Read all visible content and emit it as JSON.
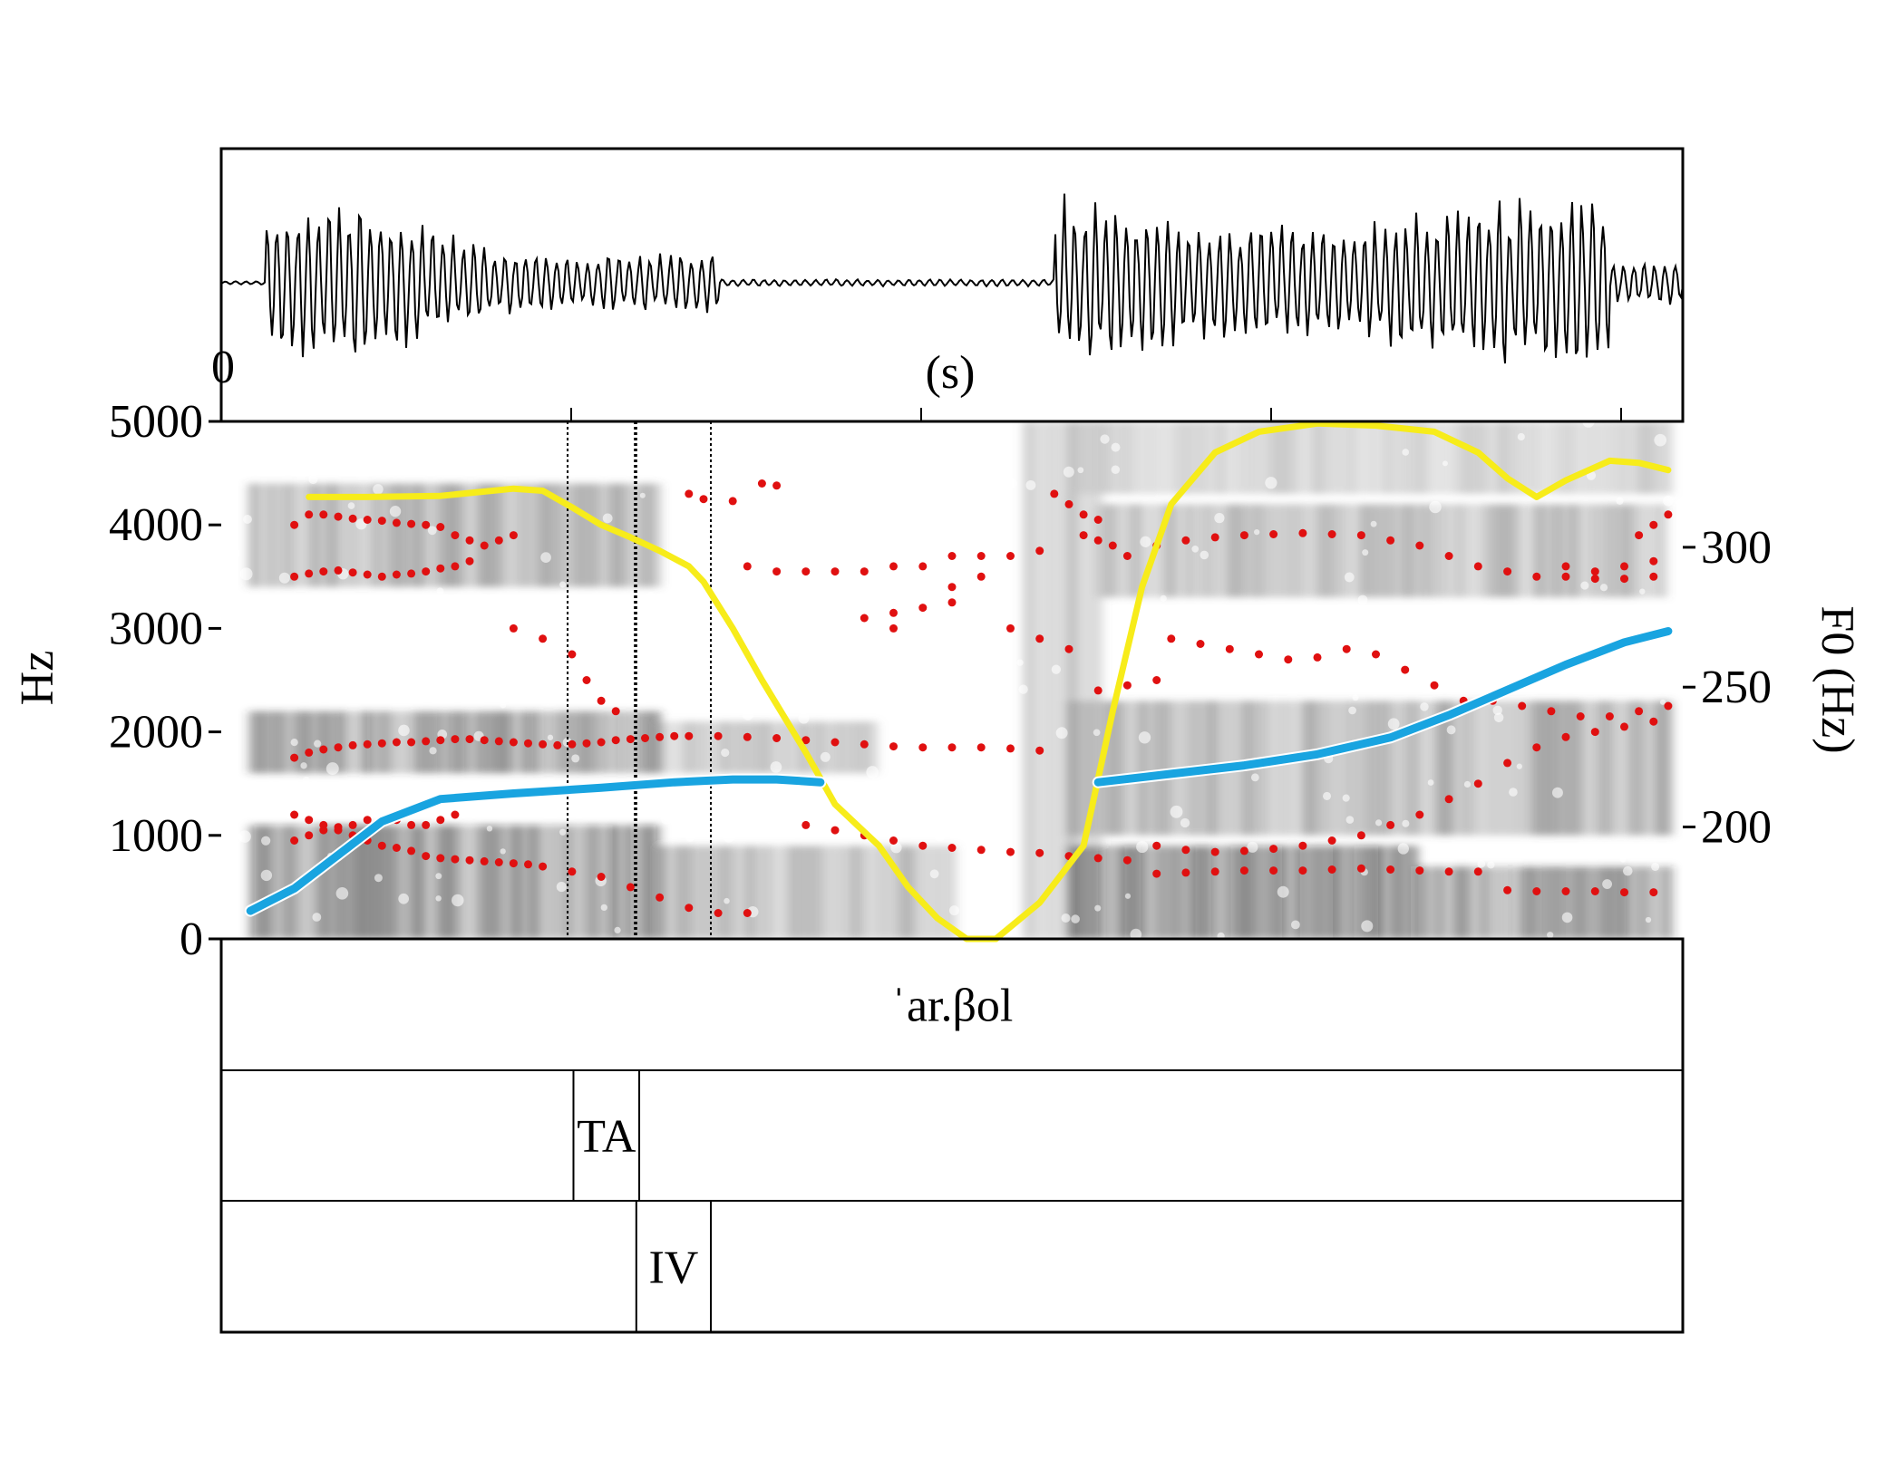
{
  "chart_data": {
    "type": "spectrogram",
    "waveform": {
      "time_start_label": "0",
      "time_unit_label": "(s)"
    },
    "spectrogram": {
      "ylabel": "Hz",
      "ylim": [
        0,
        5000
      ],
      "yticks": [
        "0",
        "1000",
        "2000",
        "3000",
        "4000",
        "5000"
      ]
    },
    "f0_axis": {
      "ylabel": "F0 (Hz)",
      "ylim": [
        160,
        345
      ],
      "yticks": [
        "200",
        "250",
        "300"
      ]
    },
    "x_range": [
      0,
      1
    ],
    "series": [
      {
        "kind": "f0",
        "color": "#19a4e0",
        "segments": [
          [
            [
              0.02,
              170
            ],
            [
              0.05,
              178
            ],
            [
              0.08,
              190
            ],
            [
              0.11,
              202
            ],
            [
              0.15,
              210
            ],
            [
              0.2,
              212
            ],
            [
              0.26,
              214
            ],
            [
              0.31,
              216
            ],
            [
              0.35,
              217
            ],
            [
              0.38,
              217
            ],
            [
              0.41,
              216
            ]
          ],
          [
            [
              0.6,
              216
            ],
            [
              0.65,
              219
            ],
            [
              0.7,
              222
            ],
            [
              0.75,
              226
            ],
            [
              0.8,
              232
            ],
            [
              0.84,
              240
            ],
            [
              0.88,
              249
            ],
            [
              0.92,
              258
            ],
            [
              0.96,
              266
            ],
            [
              0.99,
              270
            ]
          ]
        ]
      },
      {
        "kind": "intensity",
        "color": "#f7ec1a",
        "ylim": [
          0,
          5000
        ],
        "points": [
          [
            0.06,
            4270
          ],
          [
            0.1,
            4270
          ],
          [
            0.15,
            4280
          ],
          [
            0.2,
            4350
          ],
          [
            0.22,
            4330
          ],
          [
            0.24,
            4170
          ],
          [
            0.26,
            4000
          ],
          [
            0.28,
            3880
          ],
          [
            0.3,
            3750
          ],
          [
            0.32,
            3600
          ],
          [
            0.33,
            3450
          ],
          [
            0.35,
            3000
          ],
          [
            0.37,
            2500
          ],
          [
            0.4,
            1800
          ],
          [
            0.42,
            1300
          ],
          [
            0.45,
            900
          ],
          [
            0.47,
            500
          ],
          [
            0.49,
            200
          ],
          [
            0.51,
            0
          ],
          [
            0.53,
            0
          ],
          [
            0.56,
            350
          ],
          [
            0.59,
            900
          ],
          [
            0.61,
            2200
          ],
          [
            0.63,
            3400
          ],
          [
            0.65,
            4200
          ],
          [
            0.68,
            4700
          ],
          [
            0.71,
            4900
          ],
          [
            0.75,
            4980
          ],
          [
            0.79,
            4960
          ],
          [
            0.83,
            4900
          ],
          [
            0.86,
            4700
          ],
          [
            0.88,
            4450
          ],
          [
            0.9,
            4270
          ],
          [
            0.92,
            4430
          ],
          [
            0.95,
            4620
          ],
          [
            0.97,
            4600
          ],
          [
            0.99,
            4530
          ]
        ]
      },
      {
        "kind": "formants",
        "color": "#e01010",
        "points": [
          [
            0.05,
            4000
          ],
          [
            0.06,
            4100
          ],
          [
            0.07,
            4100
          ],
          [
            0.08,
            4080
          ],
          [
            0.09,
            4060
          ],
          [
            0.1,
            4050
          ],
          [
            0.11,
            4040
          ],
          [
            0.12,
            4020
          ],
          [
            0.13,
            4010
          ],
          [
            0.14,
            4000
          ],
          [
            0.15,
            3980
          ],
          [
            0.16,
            3900
          ],
          [
            0.17,
            3850
          ],
          [
            0.18,
            3800
          ],
          [
            0.19,
            3850
          ],
          [
            0.2,
            3900
          ],
          [
            0.05,
            3500
          ],
          [
            0.06,
            3530
          ],
          [
            0.07,
            3550
          ],
          [
            0.08,
            3560
          ],
          [
            0.09,
            3540
          ],
          [
            0.1,
            3520
          ],
          [
            0.11,
            3500
          ],
          [
            0.12,
            3520
          ],
          [
            0.13,
            3530
          ],
          [
            0.14,
            3550
          ],
          [
            0.15,
            3580
          ],
          [
            0.16,
            3600
          ],
          [
            0.17,
            3650
          ],
          [
            0.05,
            1750
          ],
          [
            0.06,
            1800
          ],
          [
            0.07,
            1830
          ],
          [
            0.08,
            1850
          ],
          [
            0.09,
            1870
          ],
          [
            0.1,
            1880
          ],
          [
            0.11,
            1890
          ],
          [
            0.12,
            1900
          ],
          [
            0.13,
            1900
          ],
          [
            0.14,
            1910
          ],
          [
            0.15,
            1920
          ],
          [
            0.16,
            1930
          ],
          [
            0.17,
            1930
          ],
          [
            0.18,
            1920
          ],
          [
            0.19,
            1910
          ],
          [
            0.2,
            1900
          ],
          [
            0.21,
            1890
          ],
          [
            0.22,
            1880
          ],
          [
            0.23,
            1870
          ],
          [
            0.24,
            1880
          ],
          [
            0.25,
            1890
          ],
          [
            0.26,
            1900
          ],
          [
            0.27,
            1920
          ],
          [
            0.28,
            1930
          ],
          [
            0.29,
            1940
          ],
          [
            0.3,
            1950
          ],
          [
            0.31,
            1960
          ],
          [
            0.32,
            1960
          ],
          [
            0.34,
            1960
          ],
          [
            0.36,
            1950
          ],
          [
            0.38,
            1940
          ],
          [
            0.4,
            1920
          ],
          [
            0.42,
            1900
          ],
          [
            0.44,
            1880
          ],
          [
            0.46,
            1860
          ],
          [
            0.48,
            1850
          ],
          [
            0.5,
            1850
          ],
          [
            0.52,
            1850
          ],
          [
            0.54,
            1840
          ],
          [
            0.56,
            1820
          ],
          [
            0.05,
            950
          ],
          [
            0.06,
            1000
          ],
          [
            0.07,
            1050
          ],
          [
            0.08,
            1080
          ],
          [
            0.09,
            1000
          ],
          [
            0.1,
            950
          ],
          [
            0.11,
            900
          ],
          [
            0.12,
            880
          ],
          [
            0.13,
            850
          ],
          [
            0.14,
            800
          ],
          [
            0.15,
            780
          ],
          [
            0.16,
            770
          ],
          [
            0.17,
            760
          ],
          [
            0.18,
            750
          ],
          [
            0.19,
            740
          ],
          [
            0.2,
            730
          ],
          [
            0.21,
            720
          ],
          [
            0.22,
            700
          ],
          [
            0.24,
            650
          ],
          [
            0.26,
            600
          ],
          [
            0.28,
            500
          ],
          [
            0.3,
            400
          ],
          [
            0.32,
            300
          ],
          [
            0.34,
            250
          ],
          [
            0.36,
            250
          ],
          [
            0.05,
            1200
          ],
          [
            0.06,
            1150
          ],
          [
            0.07,
            1100
          ],
          [
            0.08,
            1050
          ],
          [
            0.09,
            1100
          ],
          [
            0.1,
            1150
          ],
          [
            0.11,
            1150
          ],
          [
            0.12,
            1150
          ],
          [
            0.13,
            1100
          ],
          [
            0.14,
            1100
          ],
          [
            0.15,
            1150
          ],
          [
            0.16,
            1200
          ],
          [
            0.2,
            3000
          ],
          [
            0.22,
            2900
          ],
          [
            0.24,
            2750
          ],
          [
            0.25,
            2500
          ],
          [
            0.26,
            2300
          ],
          [
            0.27,
            2200
          ],
          [
            0.32,
            4300
          ],
          [
            0.33,
            4250
          ],
          [
            0.35,
            4230
          ],
          [
            0.37,
            4400
          ],
          [
            0.38,
            4380
          ],
          [
            0.36,
            3600
          ],
          [
            0.38,
            3550
          ],
          [
            0.4,
            3550
          ],
          [
            0.42,
            3550
          ],
          [
            0.44,
            3550
          ],
          [
            0.46,
            3600
          ],
          [
            0.48,
            3600
          ],
          [
            0.5,
            3700
          ],
          [
            0.52,
            3700
          ],
          [
            0.54,
            3700
          ],
          [
            0.56,
            3750
          ],
          [
            0.44,
            3100
          ],
          [
            0.46,
            3150
          ],
          [
            0.48,
            3200
          ],
          [
            0.5,
            3250
          ],
          [
            0.5,
            3400
          ],
          [
            0.52,
            3500
          ],
          [
            0.46,
            3000
          ],
          [
            0.54,
            3000
          ],
          [
            0.56,
            2900
          ],
          [
            0.58,
            2800
          ],
          [
            0.4,
            1100
          ],
          [
            0.42,
            1050
          ],
          [
            0.44,
            1000
          ],
          [
            0.46,
            950
          ],
          [
            0.48,
            900
          ],
          [
            0.5,
            880
          ],
          [
            0.52,
            860
          ],
          [
            0.54,
            840
          ],
          [
            0.56,
            830
          ],
          [
            0.58,
            800
          ],
          [
            0.6,
            780
          ],
          [
            0.62,
            760
          ],
          [
            0.57,
            4300
          ],
          [
            0.58,
            4200
          ],
          [
            0.59,
            4100
          ],
          [
            0.6,
            4050
          ],
          [
            0.59,
            3900
          ],
          [
            0.6,
            3850
          ],
          [
            0.61,
            3800
          ],
          [
            0.62,
            3700
          ],
          [
            0.6,
            2400
          ],
          [
            0.62,
            2450
          ],
          [
            0.64,
            2500
          ],
          [
            0.64,
            3800
          ],
          [
            0.66,
            3850
          ],
          [
            0.68,
            3880
          ],
          [
            0.7,
            3900
          ],
          [
            0.72,
            3910
          ],
          [
            0.74,
            3920
          ],
          [
            0.76,
            3910
          ],
          [
            0.78,
            3900
          ],
          [
            0.8,
            3850
          ],
          [
            0.82,
            3800
          ],
          [
            0.84,
            3700
          ],
          [
            0.86,
            3600
          ],
          [
            0.88,
            3550
          ],
          [
            0.9,
            3500
          ],
          [
            0.92,
            3500
          ],
          [
            0.94,
            3480
          ],
          [
            0.96,
            3480
          ],
          [
            0.98,
            3500
          ],
          [
            0.65,
            2900
          ],
          [
            0.67,
            2850
          ],
          [
            0.69,
            2800
          ],
          [
            0.71,
            2750
          ],
          [
            0.73,
            2700
          ],
          [
            0.75,
            2720
          ],
          [
            0.77,
            2800
          ],
          [
            0.79,
            2750
          ],
          [
            0.81,
            2600
          ],
          [
            0.83,
            2450
          ],
          [
            0.85,
            2300
          ],
          [
            0.87,
            2300
          ],
          [
            0.89,
            2250
          ],
          [
            0.91,
            2200
          ],
          [
            0.93,
            2150
          ],
          [
            0.95,
            2150
          ],
          [
            0.97,
            2200
          ],
          [
            0.99,
            2250
          ],
          [
            0.64,
            900
          ],
          [
            0.66,
            860
          ],
          [
            0.68,
            840
          ],
          [
            0.7,
            850
          ],
          [
            0.72,
            870
          ],
          [
            0.74,
            900
          ],
          [
            0.76,
            950
          ],
          [
            0.78,
            1000
          ],
          [
            0.8,
            1100
          ],
          [
            0.82,
            1200
          ],
          [
            0.84,
            1350
          ],
          [
            0.86,
            1500
          ],
          [
            0.88,
            1700
          ],
          [
            0.9,
            1850
          ],
          [
            0.92,
            1950
          ],
          [
            0.94,
            2000
          ],
          [
            0.96,
            2050
          ],
          [
            0.98,
            2100
          ],
          [
            0.64,
            630
          ],
          [
            0.66,
            640
          ],
          [
            0.68,
            650
          ],
          [
            0.7,
            660
          ],
          [
            0.72,
            660
          ],
          [
            0.74,
            660
          ],
          [
            0.76,
            670
          ],
          [
            0.78,
            680
          ],
          [
            0.8,
            670
          ],
          [
            0.82,
            660
          ],
          [
            0.84,
            650
          ],
          [
            0.86,
            650
          ],
          [
            0.88,
            470
          ],
          [
            0.9,
            460
          ],
          [
            0.92,
            460
          ],
          [
            0.94,
            460
          ],
          [
            0.96,
            450
          ],
          [
            0.98,
            450
          ],
          [
            0.92,
            3600
          ],
          [
            0.94,
            3550
          ],
          [
            0.96,
            3600
          ],
          [
            0.98,
            3650
          ],
          [
            0.98,
            4000
          ],
          [
            0.99,
            4100
          ],
          [
            0.97,
            3900
          ]
        ]
      }
    ],
    "boundaries": [
      0.237,
      0.283,
      0.284,
      0.335
    ],
    "tiers": [
      {
        "intervals": [
          {
            "start": 0,
            "end": 1,
            "label": "ˈar.βol"
          }
        ]
      },
      {
        "intervals": [
          {
            "start": 0,
            "end": 0.241,
            "label": ""
          },
          {
            "start": 0.241,
            "end": 0.286,
            "label": "TA"
          },
          {
            "start": 0.286,
            "end": 1,
            "label": ""
          }
        ]
      },
      {
        "intervals": [
          {
            "start": 0,
            "end": 0.284,
            "label": ""
          },
          {
            "start": 0.284,
            "end": 0.335,
            "label": "IV"
          },
          {
            "start": 0.335,
            "end": 1,
            "label": ""
          }
        ]
      }
    ]
  }
}
